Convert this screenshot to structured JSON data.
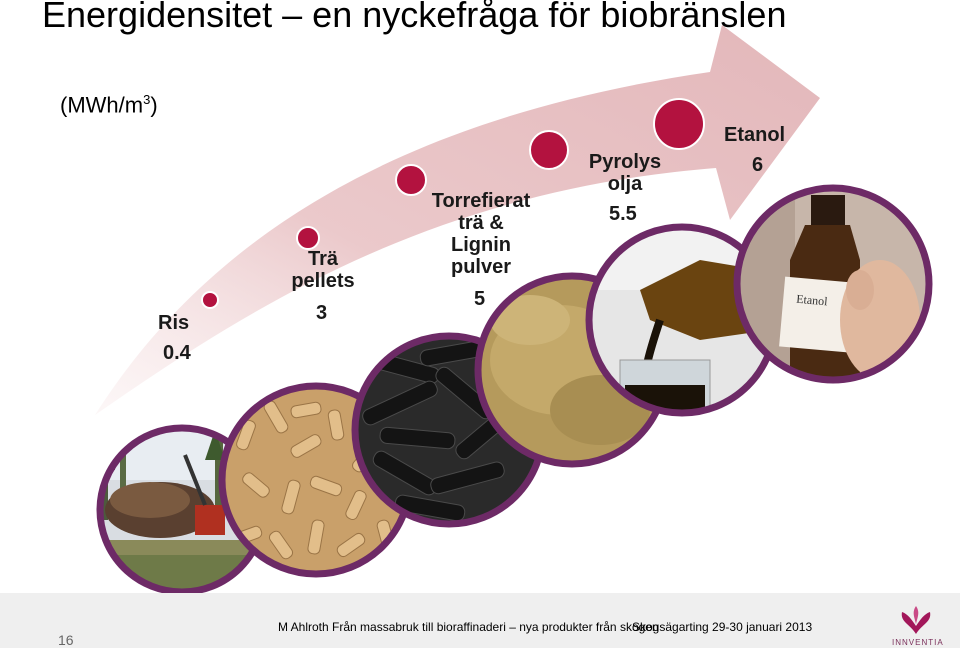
{
  "slide": {
    "title": "Energidensitet – en nyckefråga för biobränslen",
    "unit_label": "(MWh/m",
    "unit_sup": "3",
    "unit_close": ")"
  },
  "items": [
    {
      "label": "Ris",
      "value": "0.4",
      "photo_icon": "forest-residue-photo"
    },
    {
      "label_lines": [
        "Trä",
        "pellets"
      ],
      "value": "3",
      "photo_icon": "wood-pellets-photo"
    },
    {
      "label_lines": [
        "Torrefierat",
        "trä &",
        "Lignin",
        "pulver"
      ],
      "value": "5",
      "photo_icon": "black-pellets-and-powder-photo"
    },
    {
      "label_lines": [
        "Pyrolys",
        "olja"
      ],
      "value": "5.5",
      "photo_icon": "pyrolysis-oil-photo"
    },
    {
      "label": "Etanol",
      "value": "6",
      "photo_icon": "ethanol-bottle-photo"
    }
  ],
  "footer": {
    "page_number": "16",
    "text": "M Ahlroth Från massabruk till bioraffinaderi – nya produkter från skogen",
    "event": "Skogsägarting 29-30 januari 2013",
    "logo_text": "INNVENTIA"
  },
  "colors": {
    "arrow": "#e9c6c9",
    "dot": "#b3123f",
    "photo_border": "#6d2a66",
    "footer_bg": "#efefef"
  }
}
